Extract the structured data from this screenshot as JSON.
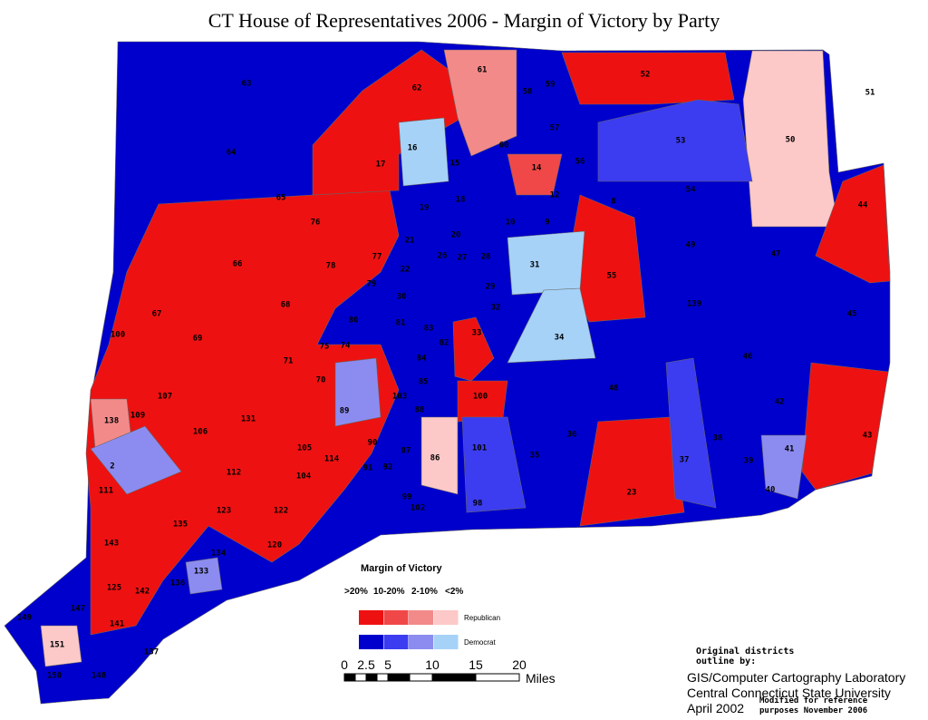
{
  "title": "CT  House of Representatives 2006 - Margin of Victory by Party",
  "districts": [
    "63",
    "64",
    "62",
    "61",
    "58",
    "59",
    "52",
    "51",
    "16",
    "60",
    "57",
    "53",
    "50",
    "14",
    "15",
    "56",
    "17",
    "65",
    "76",
    "19",
    "18",
    "12",
    "8",
    "54",
    "44",
    "21",
    "20",
    "10",
    "9",
    "77",
    "66",
    "78",
    "22",
    "26",
    "27",
    "28",
    "31",
    "49",
    "47",
    "55",
    "79",
    "29",
    "30",
    "68",
    "67",
    "139",
    "45",
    "80",
    "81",
    "32",
    "83",
    "100",
    "69",
    "75",
    "74",
    "82",
    "33",
    "34",
    "71",
    "84",
    "46",
    "70",
    "85",
    "48",
    "42",
    "107",
    "103",
    "100",
    "89",
    "138",
    "109",
    "131",
    "88",
    "86",
    "36",
    "106",
    "90",
    "43",
    "101",
    "38",
    "41",
    "105",
    "87",
    "35",
    "37",
    "39",
    "2",
    "114",
    "112",
    "104",
    "91",
    "92",
    "111",
    "40",
    "23",
    "123",
    "99",
    "102",
    "98",
    "122",
    "135",
    "143",
    "134",
    "120",
    "136",
    "133",
    "142",
    "125",
    "147",
    "149",
    "141",
    "151",
    "137",
    "150",
    "148"
  ],
  "legend": {
    "title": "Margin of Victory",
    "ranges": [
      ">20%",
      "10-20%",
      "2-10%",
      "<2%"
    ],
    "rows": [
      {
        "name": "Republican",
        "colors": [
          "#ee1111",
          "#f04848",
          "#f38a8a",
          "#fcc8c8"
        ]
      },
      {
        "name": "Democrat",
        "colors": [
          "#0000cc",
          "#3c3cf0",
          "#8c8cf0",
          "#a6d2f8"
        ]
      }
    ]
  },
  "scale": {
    "ticks": [
      "0",
      "2.5",
      "5",
      "10",
      "15",
      "20"
    ],
    "unit": "Miles"
  },
  "credits": {
    "note": [
      "Original districts",
      "outline by:"
    ],
    "lines": [
      "GIS/Computer Cartography Laboratory",
      "Central Connecticut State University",
      "April 2002"
    ],
    "modified": [
      "Modified for reference",
      "purposes November 2006"
    ]
  }
}
